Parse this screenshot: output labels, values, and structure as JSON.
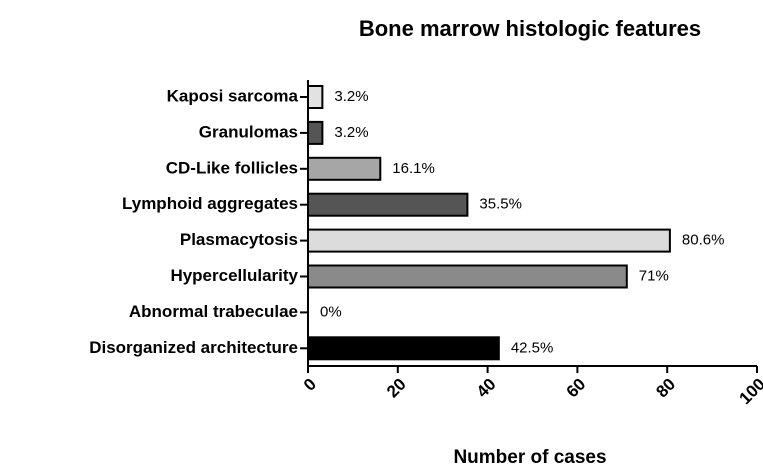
{
  "chart_data": {
    "type": "barh",
    "title": "Bone marrow histologic features",
    "categories": [
      "Kaposi sarcoma",
      "Granulomas",
      "CD-Like follicles",
      "Lymphoid aggregates",
      "Plasmacytosis",
      "Hypercellularity",
      "Abnormal trabeculae",
      "Disorganized architecture"
    ],
    "values": [
      3.2,
      3.2,
      16.1,
      35.5,
      80.6,
      71,
      0,
      42.5
    ],
    "value_labels": [
      "3.2%",
      "3.2%",
      "16.1%",
      "35.5%",
      "80.6%",
      "71%",
      "0%",
      "42.5%"
    ],
    "colors": [
      "#e2e2e2",
      "#555555",
      "#a6a6a6",
      "#555555",
      "#dcdcdc",
      "#8a8a8a",
      "#ffffff",
      "#000000"
    ],
    "xlabel": "Number of cases",
    "xlim": [
      0,
      100
    ],
    "xticks": [
      0,
      20,
      40,
      60,
      80,
      100
    ]
  }
}
